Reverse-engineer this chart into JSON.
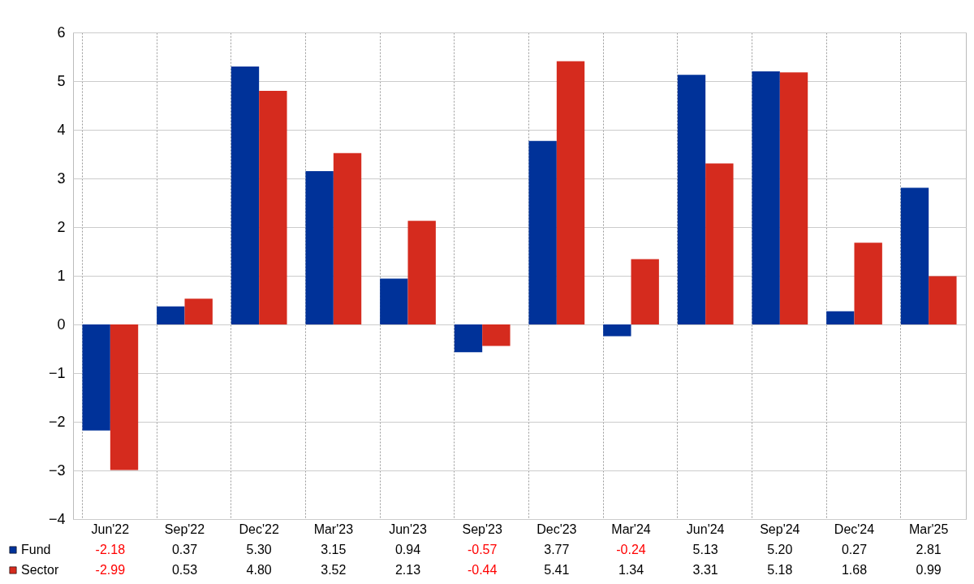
{
  "chart_data": {
    "type": "bar",
    "categories": [
      "Jun'22",
      "Sep'22",
      "Dec'22",
      "Mar'23",
      "Jun'23",
      "Sep'23",
      "Dec'23",
      "Mar'24",
      "Jun'24",
      "Sep'24",
      "Dec'24",
      "Mar'25"
    ],
    "series": [
      {
        "name": "Fund",
        "color": "#003299",
        "values": [
          -2.18,
          0.37,
          5.3,
          3.15,
          0.94,
          -0.57,
          3.77,
          -0.24,
          5.13,
          5.2,
          0.27,
          2.81
        ],
        "value_labels": [
          "-2.18",
          "0.37",
          "5.30",
          "3.15",
          "0.94",
          "-0.57",
          "3.77",
          "-0.24",
          "5.13",
          "5.20",
          "0.27",
          "2.81"
        ]
      },
      {
        "name": "Sector",
        "color": "#d52b1e",
        "values": [
          -2.99,
          0.53,
          4.8,
          3.52,
          2.13,
          -0.44,
          5.41,
          1.34,
          3.31,
          5.18,
          1.68,
          0.99
        ],
        "value_labels": [
          "-2.99",
          "0.53",
          "4.80",
          "3.52",
          "2.13",
          "-0.44",
          "5.41",
          "1.34",
          "3.31",
          "5.18",
          "1.68",
          "0.99"
        ]
      }
    ],
    "ylim": [
      -4,
      6
    ],
    "yticks": [
      -4,
      -3,
      -2,
      -1,
      0,
      1,
      2,
      3,
      4,
      5,
      6
    ],
    "grid": true,
    "legend": "bottom"
  }
}
